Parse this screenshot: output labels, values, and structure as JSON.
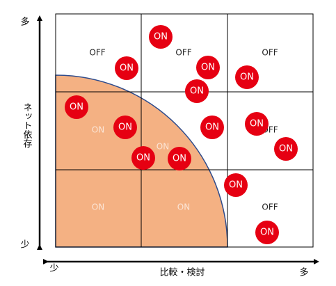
{
  "axes": {
    "y_label": "ネット依存",
    "y_high": "多",
    "y_low": "少",
    "x_label": "比較・検討",
    "x_low": "少",
    "x_high": "多"
  },
  "cell_labels": [
    "OFF",
    "OFF",
    "OFF",
    "ON",
    "OFF",
    "ON",
    "ON",
    "ON",
    "OFF"
  ],
  "badges": [
    "ON",
    "ON",
    "ON",
    "ON",
    "ON",
    "ON",
    "ON",
    "ON",
    "ON",
    "ON",
    "ON",
    "ON",
    "ON",
    "ON"
  ]
}
